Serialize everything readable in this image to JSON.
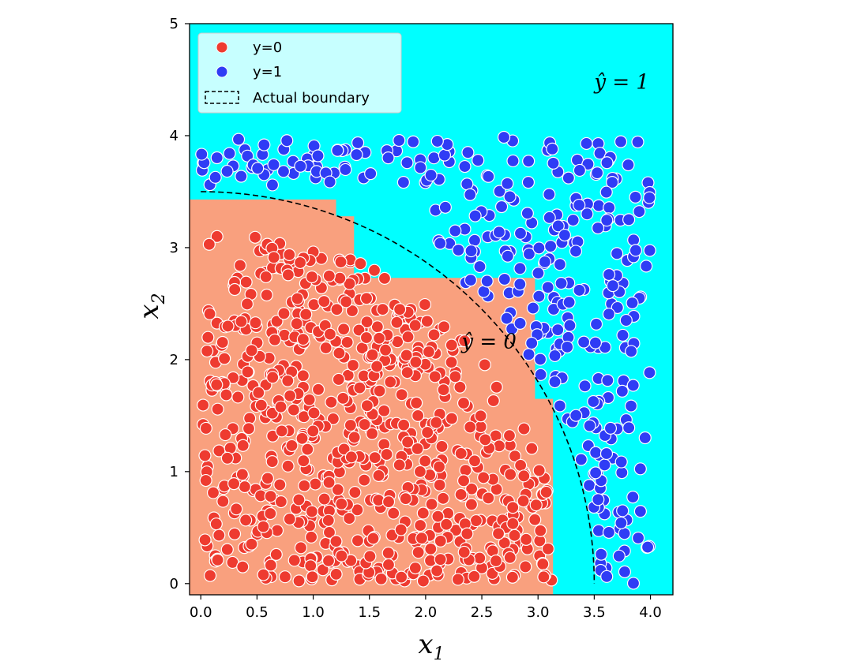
{
  "chart_data": {
    "type": "scatter",
    "xlabel": "x1",
    "xlabel_main": "x",
    "xlabel_sub": "1",
    "ylabel_main": "x",
    "ylabel_sub": "2",
    "xlim": [
      -0.1,
      4.2
    ],
    "ylim": [
      -0.1,
      5.0
    ],
    "xticks": [
      0.0,
      0.5,
      1.0,
      1.5,
      2.0,
      2.5,
      3.0,
      3.5,
      4.0
    ],
    "xtick_labels": [
      "0.0",
      "0.5",
      "1.0",
      "1.5",
      "2.0",
      "2.5",
      "3.0",
      "3.5",
      "4.0"
    ],
    "yticks": [
      0,
      1,
      2,
      3,
      4,
      5
    ],
    "ytick_labels": [
      "0",
      "1",
      "2",
      "3",
      "4",
      "5"
    ],
    "grid": false,
    "legend": {
      "placement": "top-left",
      "entries": [
        {
          "label": "y=0",
          "kind": "point",
          "color": "#ee3b30"
        },
        {
          "label": "y=1",
          "kind": "point",
          "color": "#2f3cf5"
        },
        {
          "label": "Actual boundary",
          "kind": "dashed-box",
          "color": "#000000"
        }
      ]
    },
    "background_color": "#00ffff",
    "region_color": "#f9a07e",
    "region_label_0": "ŷ = 0",
    "region_label_1": "ŷ = 1",
    "boundary": {
      "shape": "quarter-circle",
      "radius": 3.5,
      "style": "dashed"
    },
    "decision_region_0_steps": [
      {
        "x_from": -0.1,
        "x_to": 1.2,
        "y_top": 3.43
      },
      {
        "x_from": 1.2,
        "x_to": 1.36,
        "y_top": 3.28
      },
      {
        "x_from": 1.36,
        "x_to": 2.97,
        "y_top": 2.73
      },
      {
        "x_from": 2.97,
        "x_to": 3.13,
        "y_top": 1.65
      }
    ],
    "series": [
      {
        "name": "y=0",
        "color": "#ee3b30",
        "distribution": "uniform inside quarter circle x1^2 + x2^2 < 3.5^2, x1,x2 > 0",
        "count": 700
      },
      {
        "name": "y=1",
        "color": "#2f3cf5",
        "distribution": "uniform in square [0,4]x[0,4] outside circle radius 3.5",
        "count": 330
      }
    ]
  }
}
